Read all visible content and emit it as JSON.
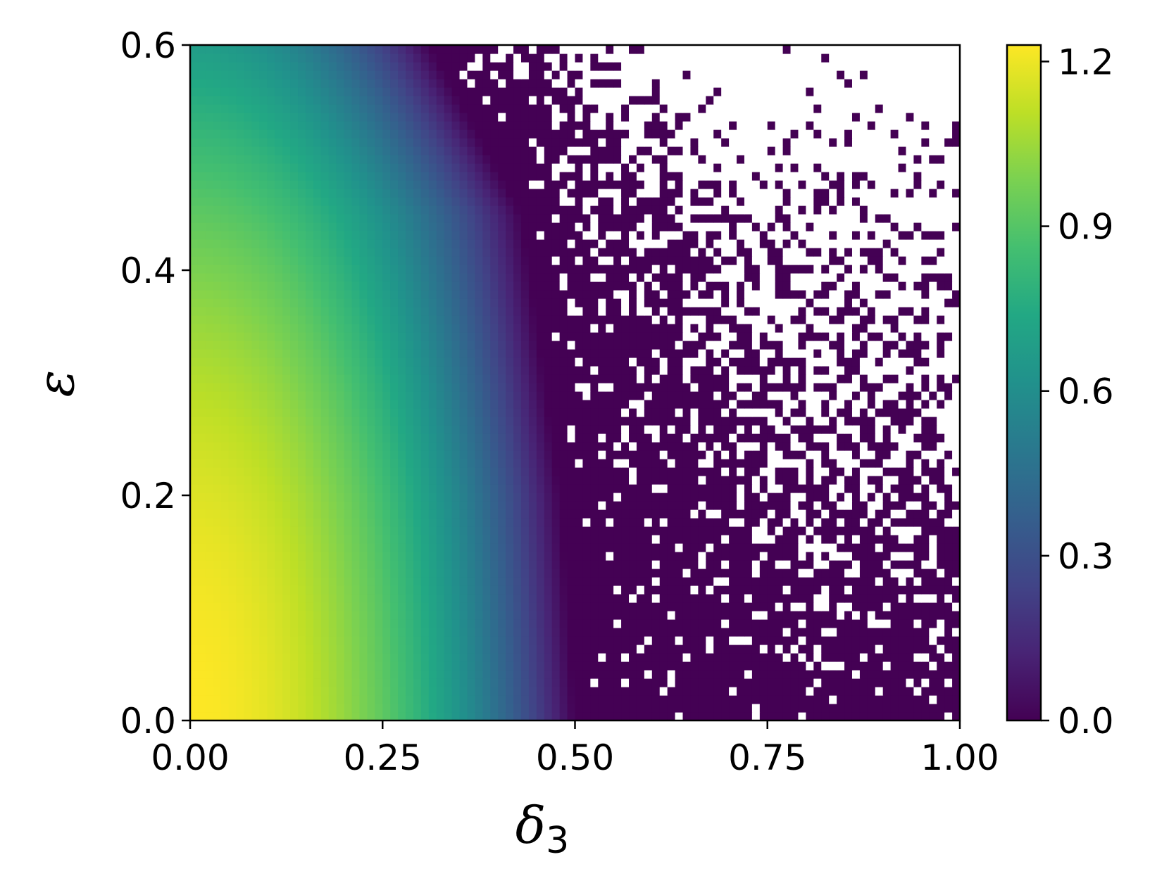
{
  "chart_data": {
    "type": "heatmap",
    "xlabel": "δ",
    "xlabel_subscript": "3",
    "ylabel": "ε",
    "xlim": [
      0.0,
      1.0
    ],
    "ylim": [
      0.0,
      0.6
    ],
    "xticks": [
      "0.00",
      "0.25",
      "0.50",
      "0.75",
      "1.00"
    ],
    "yticks": [
      "0.0",
      "0.2",
      "0.4",
      "0.6"
    ],
    "colorbar": {
      "range": [
        0.0,
        1.23
      ],
      "ticks": [
        "0.0",
        "0.3",
        "0.6",
        "0.9",
        "1.2"
      ],
      "colormap": "viridis"
    },
    "field": {
      "description_values": "z ≈ 1.23 at (0,0), falls to ~0 near δ3 ≈ 0.5 (edge bends to δ3 ≈ 0.31 at ε = 0.6); z ≈ 0 (dark purple) with scattered white (undefined) cells for δ3 > 0.5",
      "peak_value": 1.23,
      "zero_contour": [
        [
          0.5,
          0.0
        ],
        [
          0.48,
          0.2
        ],
        [
          0.43,
          0.45
        ],
        [
          0.31,
          0.6
        ]
      ]
    }
  }
}
